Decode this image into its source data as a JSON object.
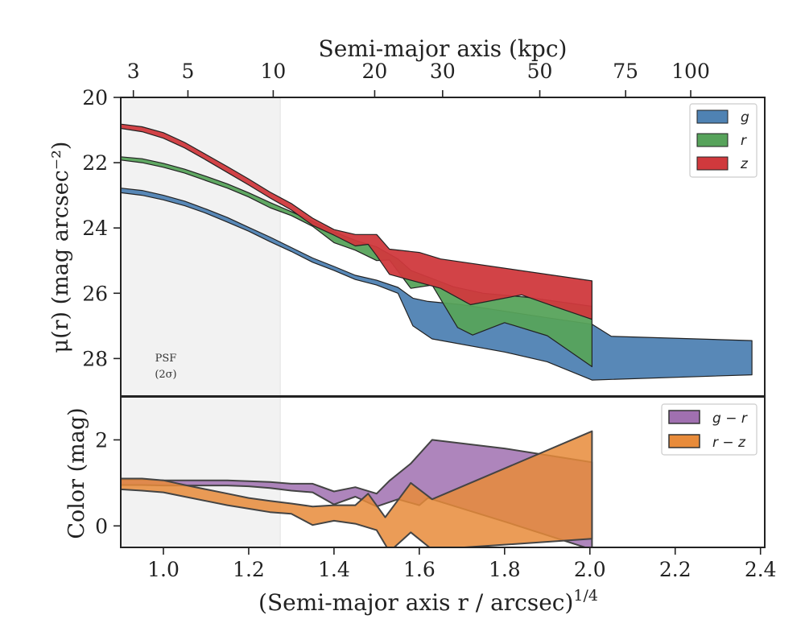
{
  "chart_data": [
    {
      "type": "area",
      "panel": "surface-brightness",
      "top_axis": {
        "label": "Semi-major axis (kpc)",
        "ticks": [
          {
            "label": "3",
            "x": 0.9296
          },
          {
            "label": "5",
            "x": 1.0575
          },
          {
            "label": "10",
            "x": 1.2575
          },
          {
            "label": "20",
            "x": 1.4954
          },
          {
            "label": "30",
            "x": 1.6547
          },
          {
            "label": "50",
            "x": 1.8825
          },
          {
            "label": "75",
            "x": 2.0838
          },
          {
            "label": "100",
            "x": 2.2364
          }
        ]
      },
      "ylabel": "μ(r) (mag arcsec⁻²)",
      "ylim": [
        29.15,
        20.0
      ],
      "yticks": [
        20,
        22,
        24,
        26,
        28
      ],
      "xlim": [
        0.9,
        2.41
      ],
      "annotation": "PSF\n(2σ)",
      "legend_position": "upper-right",
      "shaded_region": [
        0.9,
        1.274
      ],
      "series": [
        {
          "name": "g",
          "color": "#4f82b3",
          "upper": [
            [
              0.9,
              22.78
            ],
            [
              0.95,
              22.85
            ],
            [
              1.0,
              23.0
            ],
            [
              1.05,
              23.18
            ],
            [
              1.1,
              23.42
            ],
            [
              1.15,
              23.68
            ],
            [
              1.2,
              23.98
            ],
            [
              1.25,
              24.28
            ],
            [
              1.3,
              24.6
            ],
            [
              1.35,
              24.92
            ],
            [
              1.4,
              25.18
            ],
            [
              1.45,
              25.45
            ],
            [
              1.5,
              25.6
            ],
            [
              1.55,
              25.82
            ],
            [
              1.585,
              26.15
            ],
            [
              1.62,
              26.25
            ],
            [
              1.7,
              26.35
            ],
            [
              1.8,
              26.55
            ],
            [
              1.9,
              26.75
            ],
            [
              2.005,
              26.95
            ],
            [
              2.05,
              27.32
            ],
            [
              2.38,
              27.45
            ]
          ],
          "lower": [
            [
              0.9,
              22.92
            ],
            [
              0.95,
              23.0
            ],
            [
              1.0,
              23.14
            ],
            [
              1.05,
              23.32
            ],
            [
              1.1,
              23.55
            ],
            [
              1.15,
              23.82
            ],
            [
              1.2,
              24.1
            ],
            [
              1.25,
              24.42
            ],
            [
              1.3,
              24.72
            ],
            [
              1.35,
              25.05
            ],
            [
              1.4,
              25.3
            ],
            [
              1.45,
              25.58
            ],
            [
              1.5,
              25.75
            ],
            [
              1.55,
              26.0
            ],
            [
              1.585,
              27.0
            ],
            [
              1.63,
              27.4
            ],
            [
              1.8,
              27.8
            ],
            [
              1.9,
              28.1
            ],
            [
              2.005,
              28.66
            ],
            [
              2.38,
              28.5
            ]
          ]
        },
        {
          "name": "r",
          "color": "#57a35b",
          "upper": [
            [
              0.9,
              21.82
            ],
            [
              0.95,
              21.88
            ],
            [
              1.0,
              22.02
            ],
            [
              1.05,
              22.2
            ],
            [
              1.1,
              22.42
            ],
            [
              1.15,
              22.65
            ],
            [
              1.2,
              22.92
            ],
            [
              1.25,
              23.22
            ],
            [
              1.3,
              23.5
            ],
            [
              1.35,
              23.8
            ],
            [
              1.4,
              24.12
            ],
            [
              1.45,
              24.38
            ],
            [
              1.5,
              24.58
            ],
            [
              1.55,
              24.95
            ],
            [
              1.58,
              25.3
            ],
            [
              1.63,
              25.55
            ],
            [
              1.68,
              25.8
            ],
            [
              1.75,
              26.0
            ],
            [
              1.85,
              26.12
            ],
            [
              2.005,
              26.4
            ]
          ],
          "lower": [
            [
              0.9,
              21.92
            ],
            [
              0.95,
              22.0
            ],
            [
              1.0,
              22.14
            ],
            [
              1.05,
              22.32
            ],
            [
              1.1,
              22.55
            ],
            [
              1.15,
              22.78
            ],
            [
              1.2,
              23.05
            ],
            [
              1.25,
              23.38
            ],
            [
              1.3,
              23.62
            ],
            [
              1.35,
              23.95
            ],
            [
              1.4,
              24.45
            ],
            [
              1.45,
              24.68
            ],
            [
              1.5,
              25.0
            ],
            [
              1.53,
              24.98
            ],
            [
              1.58,
              25.85
            ],
            [
              1.63,
              25.75
            ],
            [
              1.69,
              27.05
            ],
            [
              1.725,
              27.28
            ],
            [
              1.8,
              26.9
            ],
            [
              1.9,
              27.3
            ],
            [
              2.005,
              28.25
            ]
          ]
        },
        {
          "name": "z",
          "color": "#d0393d",
          "upper": [
            [
              0.9,
              20.82
            ],
            [
              0.95,
              20.9
            ],
            [
              1.0,
              21.08
            ],
            [
              1.05,
              21.38
            ],
            [
              1.1,
              21.75
            ],
            [
              1.15,
              22.12
            ],
            [
              1.2,
              22.5
            ],
            [
              1.25,
              22.9
            ],
            [
              1.3,
              23.25
            ],
            [
              1.35,
              23.7
            ],
            [
              1.4,
              24.05
            ],
            [
              1.45,
              24.2
            ],
            [
              1.5,
              24.2
            ],
            [
              1.53,
              24.65
            ],
            [
              1.6,
              24.75
            ],
            [
              1.65,
              24.95
            ],
            [
              2.005,
              25.62
            ]
          ],
          "lower": [
            [
              0.9,
              20.95
            ],
            [
              0.95,
              21.05
            ],
            [
              1.0,
              21.25
            ],
            [
              1.05,
              21.55
            ],
            [
              1.1,
              21.92
            ],
            [
              1.15,
              22.3
            ],
            [
              1.2,
              22.68
            ],
            [
              1.25,
              23.08
            ],
            [
              1.3,
              23.45
            ],
            [
              1.35,
              23.92
            ],
            [
              1.4,
              24.22
            ],
            [
              1.45,
              24.55
            ],
            [
              1.48,
              24.5
            ],
            [
              1.5,
              24.85
            ],
            [
              1.53,
              25.42
            ],
            [
              1.58,
              25.6
            ],
            [
              1.65,
              25.85
            ],
            [
              1.72,
              26.35
            ],
            [
              1.84,
              26.05
            ],
            [
              1.92,
              26.42
            ],
            [
              2.005,
              26.8
            ]
          ]
        }
      ]
    },
    {
      "type": "area",
      "panel": "color",
      "xlabel": "(Semi-major axis r / arcsec)^1/4",
      "ylabel": "Color (mag)",
      "xlim": [
        0.9,
        2.41
      ],
      "ylim": [
        -0.5,
        3.0
      ],
      "yticks": [
        0,
        2
      ],
      "xticks": [
        1.0,
        1.2,
        1.4,
        1.6,
        1.8,
        2.0,
        2.2,
        2.4
      ],
      "legend_position": "upper-right",
      "series": [
        {
          "name": "g − r",
          "color": "#a070b0",
          "upper": [
            [
              0.9,
              1.08
            ],
            [
              0.95,
              1.08
            ],
            [
              1.0,
              1.06
            ],
            [
              1.05,
              1.06
            ],
            [
              1.1,
              1.06
            ],
            [
              1.15,
              1.06
            ],
            [
              1.2,
              1.04
            ],
            [
              1.25,
              1.02
            ],
            [
              1.3,
              0.98
            ],
            [
              1.35,
              0.98
            ],
            [
              1.4,
              0.8
            ],
            [
              1.45,
              0.9
            ],
            [
              1.5,
              0.75
            ],
            [
              1.53,
              1.05
            ],
            [
              1.58,
              1.45
            ],
            [
              1.63,
              2.0
            ],
            [
              1.8,
              1.8
            ],
            [
              2.005,
              1.48
            ]
          ],
          "lower": [
            [
              0.9,
              0.95
            ],
            [
              0.95,
              0.95
            ],
            [
              1.0,
              0.94
            ],
            [
              1.05,
              0.94
            ],
            [
              1.1,
              0.94
            ],
            [
              1.15,
              0.94
            ],
            [
              1.2,
              0.92
            ],
            [
              1.25,
              0.88
            ],
            [
              1.3,
              0.82
            ],
            [
              1.35,
              0.78
            ],
            [
              1.4,
              0.5
            ],
            [
              1.45,
              0.68
            ],
            [
              1.5,
              0.45
            ],
            [
              1.55,
              0.62
            ],
            [
              1.6,
              0.48
            ],
            [
              1.62,
              0.65
            ],
            [
              1.8,
              0.1
            ],
            [
              2.005,
              -0.55
            ]
          ]
        },
        {
          "name": "r − z",
          "color": "#e88b3a",
          "upper": [
            [
              0.9,
              1.1
            ],
            [
              0.95,
              1.1
            ],
            [
              1.0,
              1.06
            ],
            [
              1.05,
              0.95
            ],
            [
              1.1,
              0.85
            ],
            [
              1.15,
              0.75
            ],
            [
              1.2,
              0.65
            ],
            [
              1.25,
              0.58
            ],
            [
              1.3,
              0.52
            ],
            [
              1.35,
              0.45
            ],
            [
              1.4,
              0.48
            ],
            [
              1.45,
              0.48
            ],
            [
              1.48,
              0.75
            ],
            [
              1.52,
              0.2
            ],
            [
              1.58,
              1.0
            ],
            [
              1.63,
              0.62
            ],
            [
              2.005,
              2.2
            ]
          ],
          "lower": [
            [
              0.9,
              0.85
            ],
            [
              0.95,
              0.82
            ],
            [
              1.0,
              0.78
            ],
            [
              1.05,
              0.68
            ],
            [
              1.1,
              0.58
            ],
            [
              1.15,
              0.48
            ],
            [
              1.2,
              0.4
            ],
            [
              1.25,
              0.32
            ],
            [
              1.3,
              0.28
            ],
            [
              1.35,
              0.02
            ],
            [
              1.4,
              0.12
            ],
            [
              1.45,
              0.05
            ],
            [
              1.5,
              -0.1
            ],
            [
              1.53,
              -0.6
            ],
            [
              1.58,
              -0.15
            ],
            [
              1.63,
              -0.55
            ],
            [
              2.005,
              -0.3
            ]
          ]
        }
      ]
    }
  ],
  "psf_label": "PSF",
  "psf_sigma": "(2σ)",
  "top_axis_label": "Semi-major axis (kpc)",
  "y_top_label": "μ(r) (mag arcsec⁻²)",
  "y_bottom_label": "Color (mag)",
  "x_bottom_label": "(Semi-major axis r / arcsec)",
  "x_bottom_superscript": "1/4"
}
